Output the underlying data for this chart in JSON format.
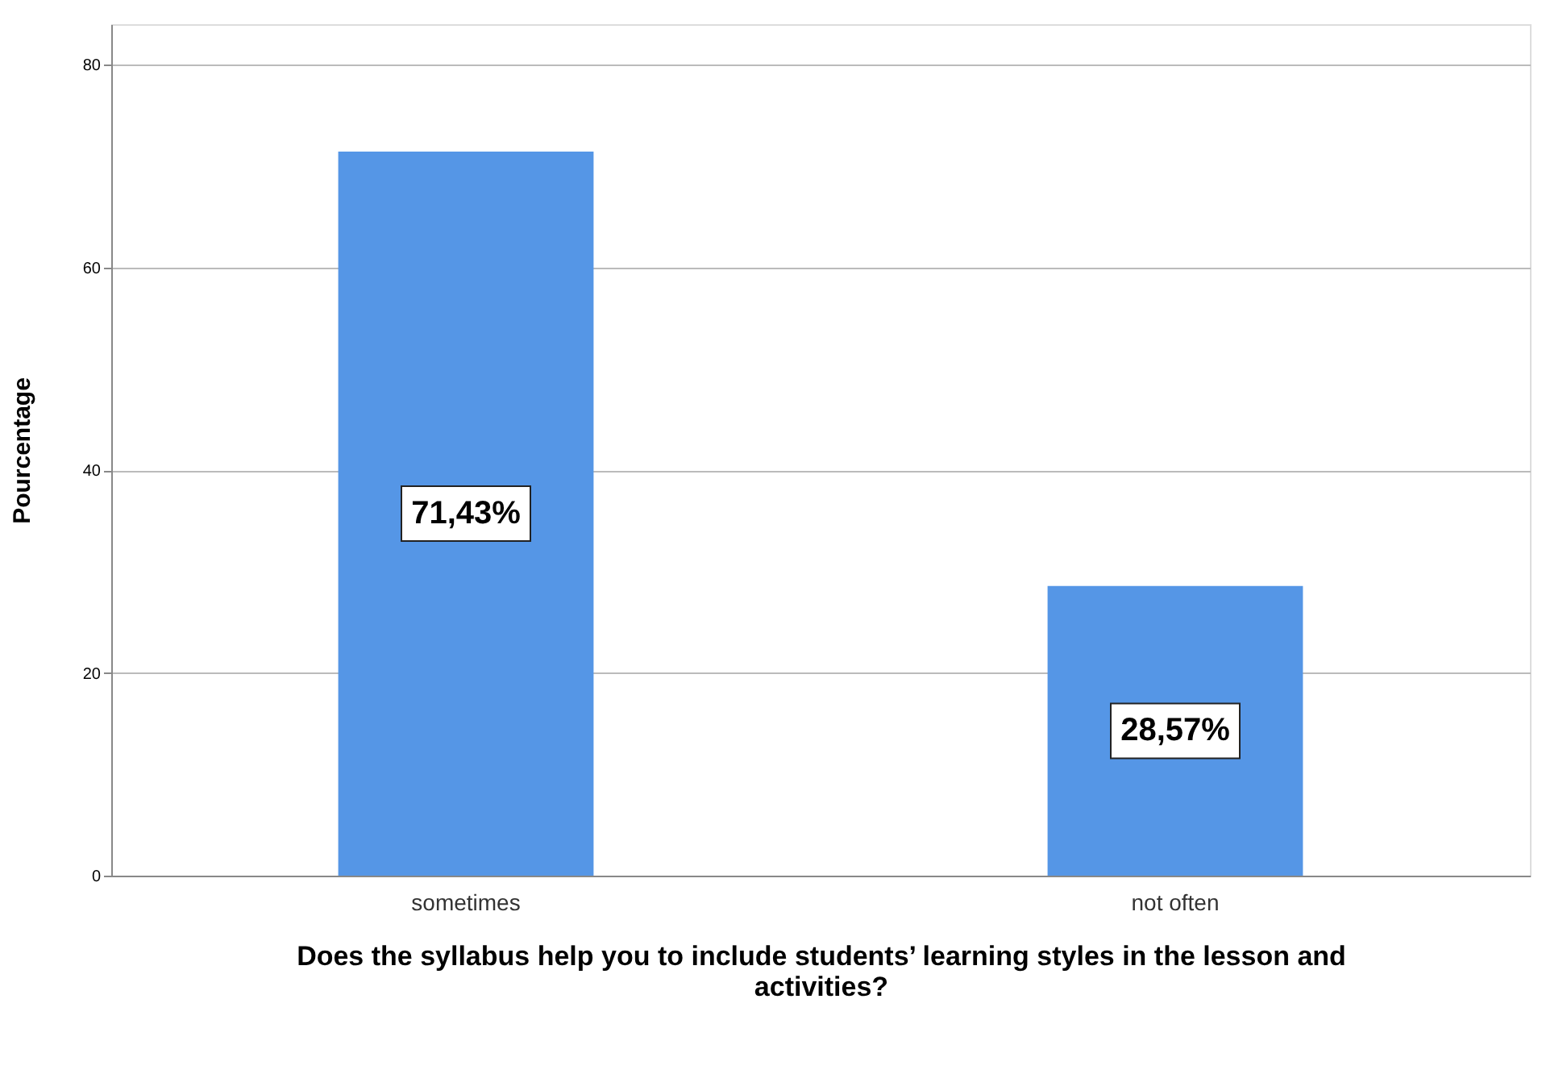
{
  "chart_data": {
    "type": "bar",
    "xlabel": "Does the syllabus help you to include students’ learning styles in the lesson and activities?",
    "ylabel": "Pourcentage",
    "categories": [
      "sometimes",
      "not often"
    ],
    "values": [
      71.43,
      28.57
    ],
    "value_labels": [
      "71,43%",
      "28,57%"
    ],
    "color": "#5596e6",
    "ylim": [
      0,
      84
    ],
    "yticks": [
      0,
      20,
      40,
      60,
      80
    ],
    "grid": "y"
  }
}
